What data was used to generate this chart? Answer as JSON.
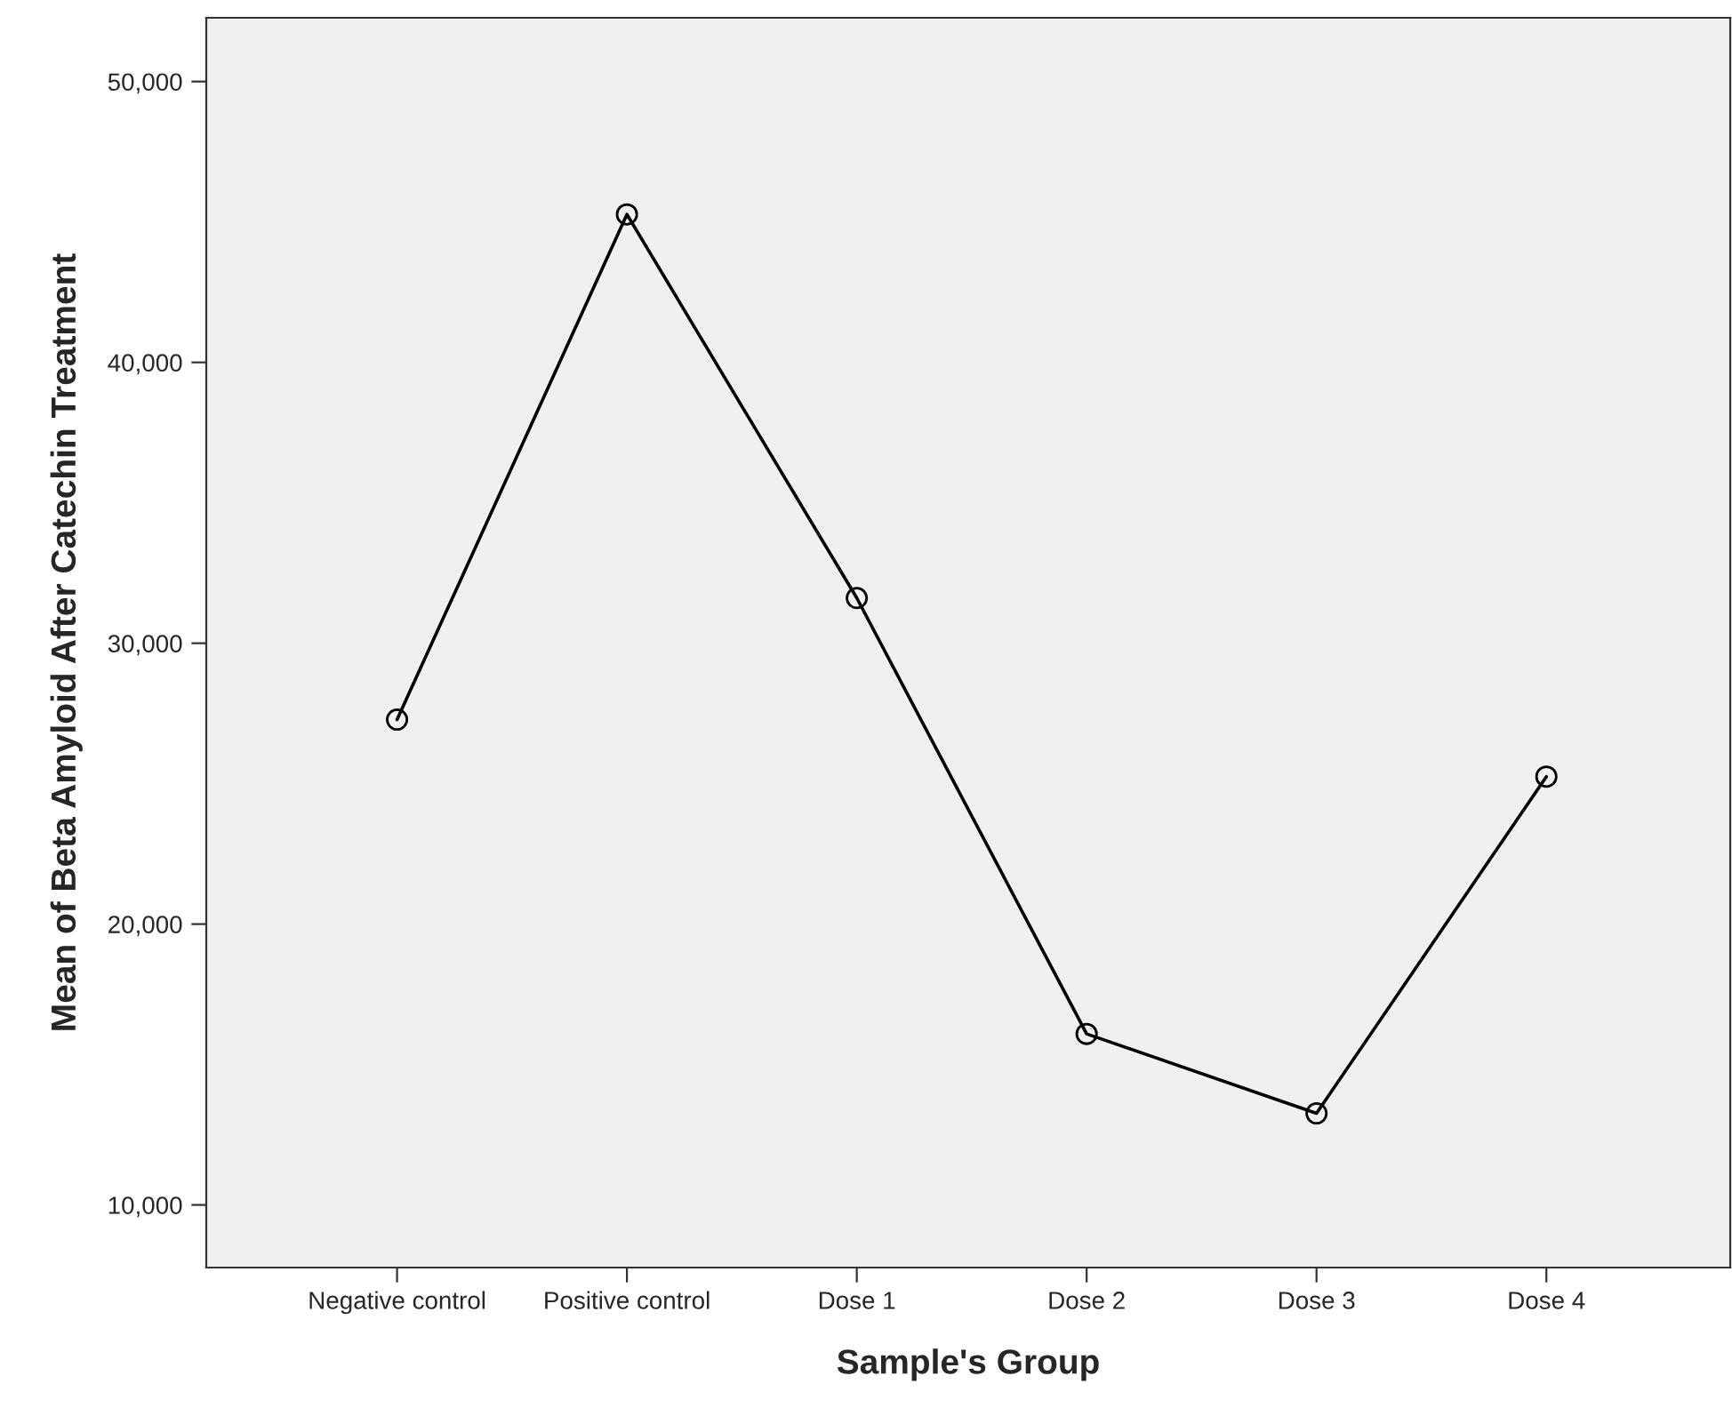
{
  "chart_data": {
    "type": "line",
    "xlabel": "Sample's Group",
    "ylabel": "Mean of Beta Amyloid After Catechin Treatment",
    "categories": [
      "Negative control",
      "Positive control",
      "Dose 1",
      "Dose 2",
      "Dose 3",
      "Dose 4"
    ],
    "series": [
      {
        "color": "#000000",
        "values": [
          27280,
          45270,
          31610,
          16090,
          13260,
          25250
        ]
      }
    ],
    "ylim": [
      7770,
      52270
    ],
    "yticks": [
      {
        "value": 10000,
        "label": "10,000"
      },
      {
        "value": 20000,
        "label": "20,000"
      },
      {
        "value": 30000,
        "label": "30,000"
      },
      {
        "value": 40000,
        "label": "40,000"
      },
      {
        "value": 50000,
        "label": "50,000"
      }
    ],
    "marker": "circle",
    "line_style": "solid",
    "grid": false
  }
}
